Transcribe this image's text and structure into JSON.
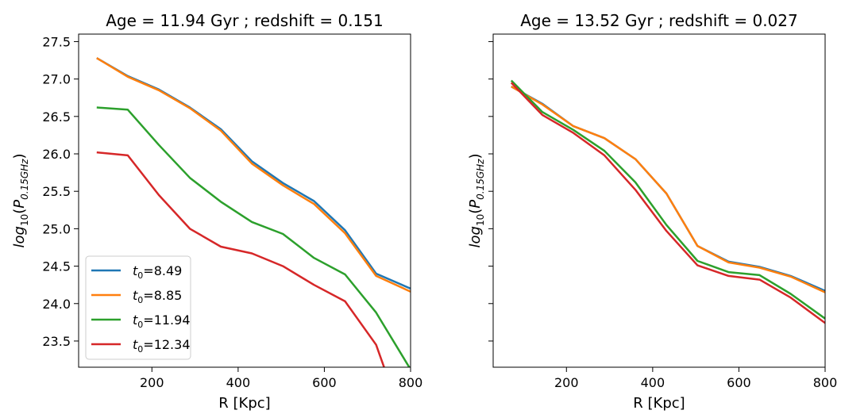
{
  "chart_data": [
    {
      "type": "line",
      "title": "Age = 11.94 Gyr ; redshift = 0.151",
      "xlabel": "R [Kpc]",
      "ylabel_base": "log",
      "ylabel_sub": "10",
      "ylabel_var": "P",
      "ylabel_var_sub": "0.15GHz",
      "xlim": [
        30,
        800
      ],
      "ylim": [
        23.15,
        27.6
      ],
      "xticks": [
        200,
        400,
        600,
        800
      ],
      "yticks": [
        23.5,
        24.0,
        24.5,
        25.0,
        25.5,
        26.0,
        26.5,
        27.0,
        27.5
      ],
      "ytick_labels_shown": true,
      "legend": "lower-left",
      "series": [
        {
          "name_base": "t",
          "name_sub": "0",
          "name_value": "=8.49",
          "color": "#1f77b4",
          "x": [
            72,
            144,
            216,
            288,
            360,
            432,
            504,
            576,
            648,
            720,
            800
          ],
          "y": [
            27.28,
            27.04,
            26.86,
            26.62,
            26.33,
            25.9,
            25.61,
            25.37,
            24.98,
            24.4,
            24.2
          ]
        },
        {
          "name_base": "t",
          "name_sub": "0",
          "name_value": "=8.85",
          "color": "#ff7f0e",
          "x": [
            72,
            144,
            216,
            288,
            360,
            432,
            504,
            576,
            648,
            720,
            800
          ],
          "y": [
            27.28,
            27.03,
            26.85,
            26.61,
            26.31,
            25.87,
            25.58,
            25.33,
            24.94,
            24.37,
            24.16
          ]
        },
        {
          "name_base": "t",
          "name_sub": "0",
          "name_value": "=11.94",
          "color": "#2ca02c",
          "x": [
            72,
            144,
            216,
            288,
            360,
            432,
            504,
            576,
            648,
            720,
            800
          ],
          "y": [
            26.62,
            26.59,
            26.12,
            25.68,
            25.36,
            25.09,
            24.93,
            24.61,
            24.39,
            23.88,
            23.12
          ]
        },
        {
          "name_base": "t",
          "name_sub": "0",
          "name_value": "=12.34",
          "color": "#d62728",
          "x": [
            72,
            144,
            216,
            288,
            360,
            432,
            504,
            576,
            648,
            720,
            760
          ],
          "y": [
            26.02,
            25.98,
            25.45,
            25.0,
            24.76,
            24.67,
            24.5,
            24.25,
            24.03,
            23.45,
            22.8
          ]
        }
      ]
    },
    {
      "type": "line",
      "title": "Age = 13.52 Gyr ; redshift = 0.027",
      "xlabel": "R [Kpc]",
      "ylabel_base": "log",
      "ylabel_sub": "10",
      "ylabel_var": "P",
      "ylabel_var_sub": "0.15GHz",
      "xlim": [
        30,
        800
      ],
      "ylim": [
        23.15,
        27.6
      ],
      "xticks": [
        200,
        400,
        600,
        800
      ],
      "yticks": [
        23.5,
        24.0,
        24.5,
        25.0,
        25.5,
        26.0,
        26.5,
        27.0,
        27.5
      ],
      "ytick_labels_shown": false,
      "series": [
        {
          "color": "#1f77b4",
          "x": [
            72,
            144,
            216,
            288,
            360,
            432,
            504,
            576,
            648,
            720,
            800
          ],
          "y": [
            26.9,
            26.67,
            26.37,
            26.21,
            25.93,
            25.47,
            24.77,
            24.56,
            24.49,
            24.37,
            24.17
          ]
        },
        {
          "color": "#ff7f0e",
          "x": [
            72,
            144,
            216,
            288,
            360,
            432,
            504,
            576,
            648,
            720,
            800
          ],
          "y": [
            26.9,
            26.66,
            26.37,
            26.21,
            25.93,
            25.47,
            24.77,
            24.55,
            24.48,
            24.36,
            24.15
          ]
        },
        {
          "color": "#2ca02c",
          "x": [
            72,
            144,
            216,
            288,
            360,
            432,
            504,
            576,
            648,
            720,
            800
          ],
          "y": [
            26.98,
            26.56,
            26.32,
            26.04,
            25.62,
            25.05,
            24.57,
            24.42,
            24.38,
            24.13,
            23.8
          ]
        },
        {
          "color": "#d62728",
          "x": [
            72,
            144,
            216,
            288,
            360,
            432,
            504,
            576,
            648,
            720,
            800
          ],
          "y": [
            26.95,
            26.52,
            26.28,
            25.98,
            25.52,
            24.97,
            24.51,
            24.37,
            24.32,
            24.08,
            23.74
          ]
        }
      ]
    }
  ]
}
